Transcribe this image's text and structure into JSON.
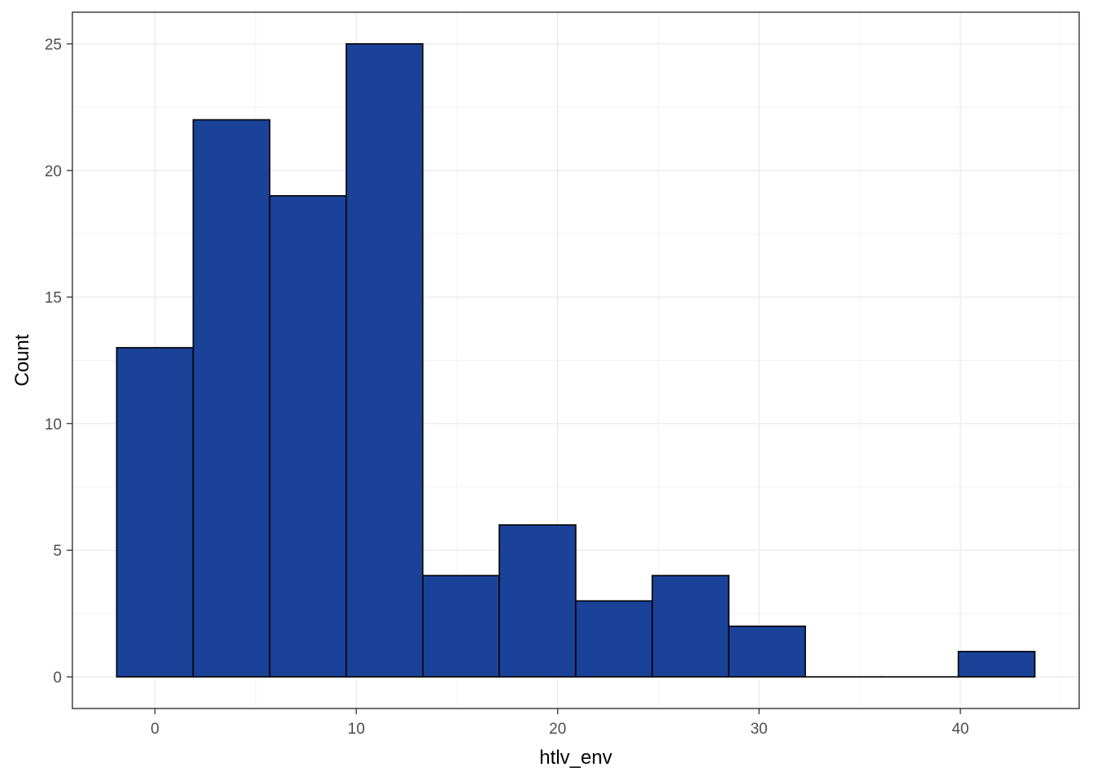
{
  "chart_data": {
    "type": "bar",
    "subtype": "histogram",
    "title": "",
    "xlabel": "htlv_env",
    "ylabel": "Count",
    "bins": [
      {
        "x0": -1.9,
        "x1": 1.9,
        "count": 13
      },
      {
        "x0": 1.9,
        "x1": 5.7,
        "count": 22
      },
      {
        "x0": 5.7,
        "x1": 9.5,
        "count": 19
      },
      {
        "x0": 9.5,
        "x1": 13.3,
        "count": 25
      },
      {
        "x0": 13.3,
        "x1": 17.1,
        "count": 4
      },
      {
        "x0": 17.1,
        "x1": 20.9,
        "count": 6
      },
      {
        "x0": 20.9,
        "x1": 24.7,
        "count": 3
      },
      {
        "x0": 24.7,
        "x1": 28.5,
        "count": 4
      },
      {
        "x0": 28.5,
        "x1": 32.3,
        "count": 2
      },
      {
        "x0": 32.3,
        "x1": 36.1,
        "count": 0
      },
      {
        "x0": 36.1,
        "x1": 39.9,
        "count": 0
      },
      {
        "x0": 39.9,
        "x1": 43.7,
        "count": 1
      }
    ],
    "xlim": [
      -4.1,
      45.9
    ],
    "ylim": [
      -1.25,
      26.25
    ],
    "x_ticks": [
      "0",
      "10",
      "20",
      "30",
      "40"
    ],
    "y_ticks": [
      "0",
      "5",
      "10",
      "15",
      "20",
      "25"
    ],
    "grid": true,
    "fill_color": "#1a4299",
    "edge_color": "#000000",
    "panel_border_color": "#333333"
  }
}
